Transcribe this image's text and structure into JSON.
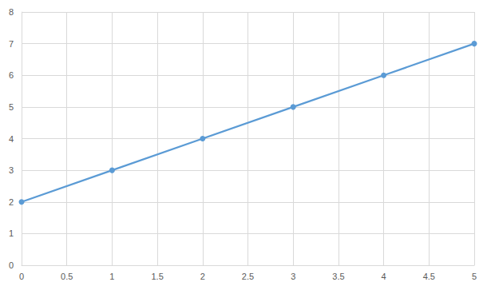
{
  "chart_data": {
    "type": "line",
    "x": [
      0,
      1,
      2,
      3,
      4,
      5
    ],
    "values": [
      2,
      3,
      4,
      5,
      6,
      7
    ],
    "color": "#5b9bd5",
    "marker": "circle",
    "xlim": [
      0,
      5
    ],
    "xticks": [
      0,
      0.5,
      1,
      1.5,
      2,
      2.5,
      3,
      3.5,
      4,
      4.5,
      5
    ],
    "ylim": [
      0,
      8
    ],
    "yticks": [
      0,
      1,
      2,
      3,
      4,
      5,
      6,
      7,
      8
    ],
    "grid": true
  }
}
